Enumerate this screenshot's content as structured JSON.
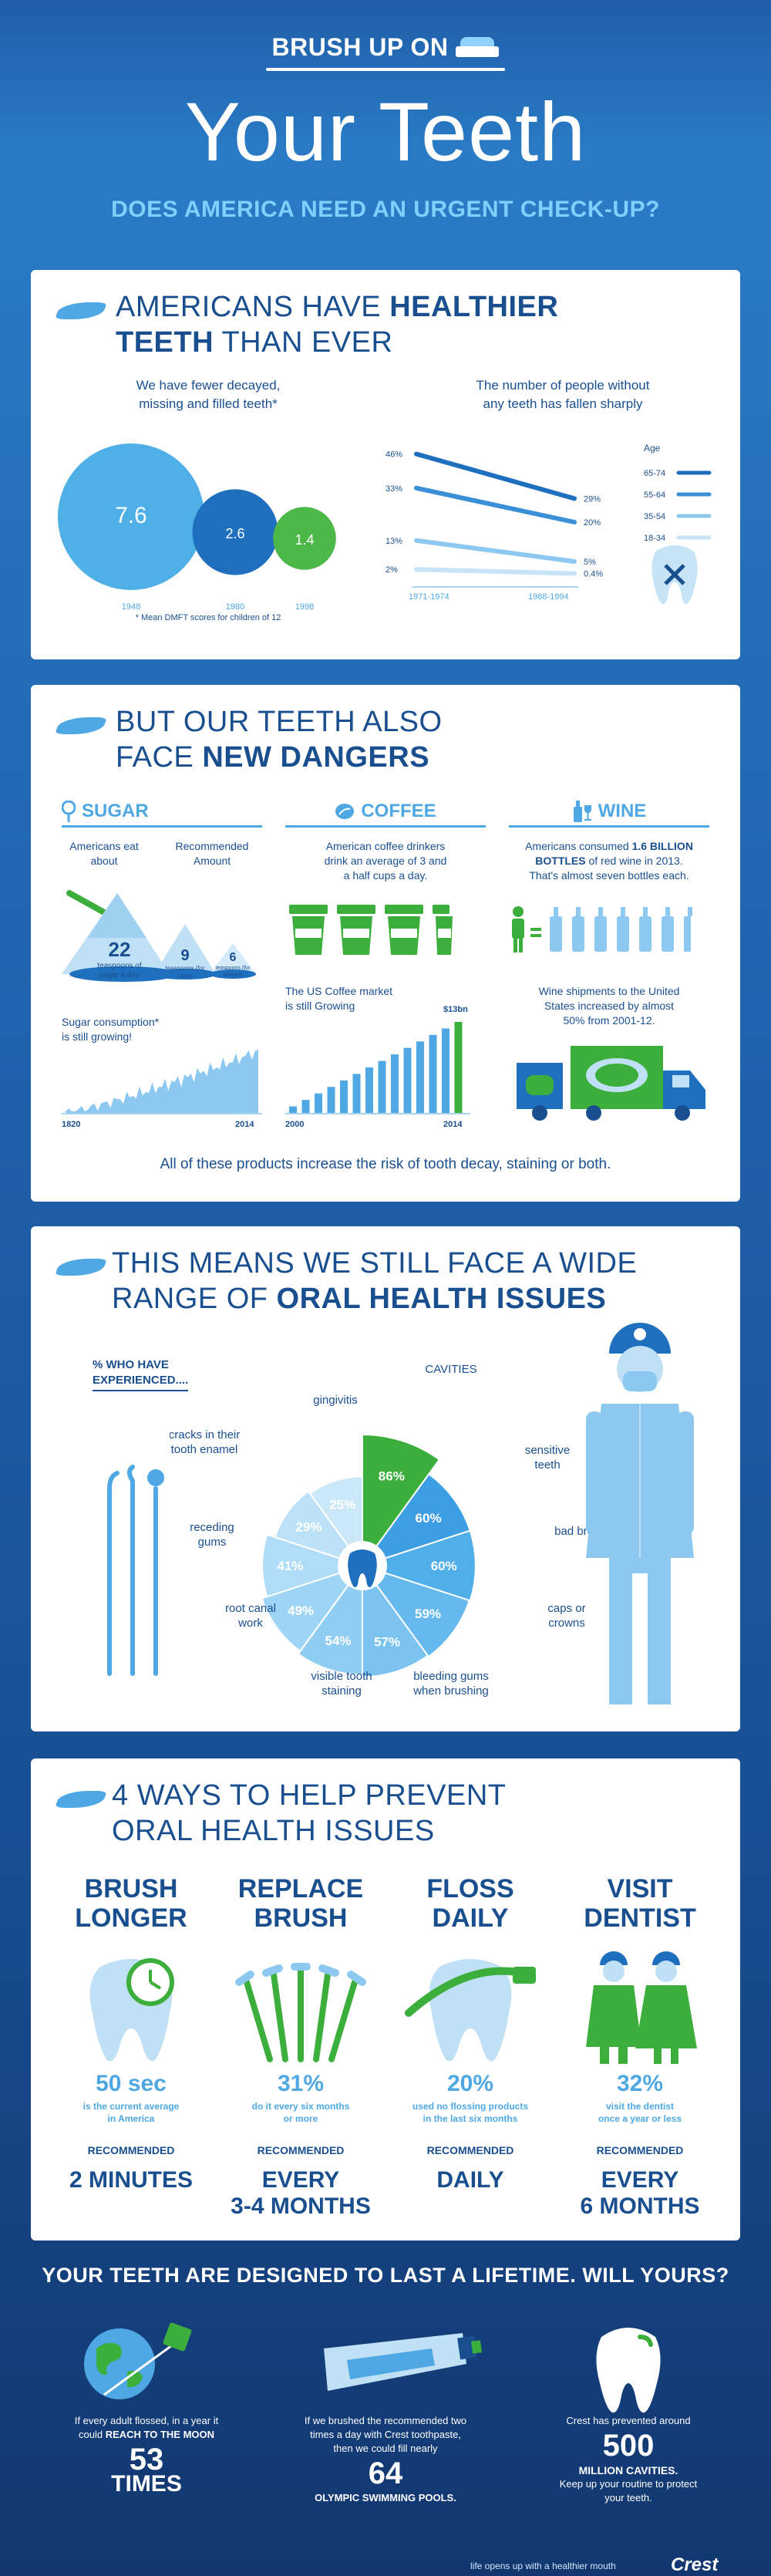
{
  "header": {
    "brush_up": "BRUSH UP ON",
    "title": "Your Teeth",
    "subtitle": "DOES AMERICA NEED AN URGENT CHECK-UP?"
  },
  "card1": {
    "title_pre": "AMERICANS HAVE",
    "title_bold": "HEALTHIER",
    "title_line2_bold": "TEETH",
    "title_line2": "THAN EVER",
    "left_heading_1": "We have fewer decayed,",
    "left_heading_2": "missing and filled teeth*",
    "right_heading_1": "The number of people without",
    "right_heading_2": "any teeth has fallen sharply",
    "footnote": "* Mean DMFT scores for children of 12",
    "legend_title": "Age"
  },
  "chart_data": [
    {
      "type": "bubble",
      "categories": [
        "1948",
        "1980",
        "1998"
      ],
      "values": [
        7.6,
        2.6,
        1.4
      ],
      "value_labels": [
        "7.6",
        "2.6",
        "1.4"
      ],
      "colors": [
        "#4fb0e8",
        "#1f6fbf",
        "#4cb848"
      ]
    },
    {
      "type": "line",
      "x": [
        "1971-1974",
        "1988-1994"
      ],
      "series": [
        {
          "name": "65-74",
          "values": [
            46,
            29
          ],
          "labels": [
            "46%",
            "29%"
          ],
          "color": "#1f6fbf"
        },
        {
          "name": "55-64",
          "values": [
            33,
            20
          ],
          "labels": [
            "33%",
            "20%"
          ],
          "color": "#3a8fd6"
        },
        {
          "name": "35-54",
          "values": [
            13,
            5
          ],
          "labels": [
            "13%",
            "5%"
          ],
          "color": "#8cc8ef"
        },
        {
          "name": "18-34",
          "values": [
            2,
            0.4
          ],
          "labels": [
            "2%",
            "0.4%"
          ],
          "color": "#c7e4f7"
        }
      ],
      "ylim": [
        0,
        50
      ]
    },
    {
      "type": "area",
      "title": "Sugar consumption* is still growing!",
      "x_labels": [
        "1820",
        "2014"
      ]
    },
    {
      "type": "bar",
      "title": "The US Coffee market is still Growing",
      "x_labels": [
        "2000",
        "2014"
      ],
      "values": [
        1,
        2,
        3,
        4,
        5,
        6,
        7,
        8,
        9,
        10,
        11,
        12,
        13,
        14
      ],
      "end_label": "$13bn"
    },
    {
      "type": "pie",
      "title": "CAVITIES",
      "heading_1": "% WHO HAVE",
      "heading_2": "EXPERIENCED....",
      "slices": [
        {
          "name": "CAVITIES",
          "value": 86,
          "label": "86%",
          "color": "#3cae3c"
        },
        {
          "name": "sensitive teeth",
          "value": 60,
          "label": "60%",
          "color": "#3d9ee3"
        },
        {
          "name": "bad breath",
          "value": 60,
          "label": "60%",
          "color": "#50aee9"
        },
        {
          "name": "caps or crowns",
          "value": 59,
          "label": "59%",
          "color": "#66b9ec"
        },
        {
          "name": "bleeding gums when brushing",
          "value": 57,
          "label": "57%",
          "color": "#7cc4ef"
        },
        {
          "name": "visible tooth staining",
          "value": 54,
          "label": "54%",
          "color": "#8fcdf2"
        },
        {
          "name": "root canal work",
          "value": 49,
          "label": "49%",
          "color": "#9fd5f4"
        },
        {
          "name": "receding gums",
          "value": 41,
          "label": "41%",
          "color": "#afdcf6"
        },
        {
          "name": "cracks in their tooth enamel",
          "value": 29,
          "label": "29%",
          "color": "#bde2f7"
        },
        {
          "name": "gingivitis",
          "value": 25,
          "label": "25%",
          "color": "#cbe8f9"
        }
      ]
    }
  ],
  "card2": {
    "title_line1": "BUT OUR TEETH ALSO",
    "title_line2_pre": "FACE",
    "title_line2_bold": "NEW DANGERS",
    "sugar": {
      "heading": "SUGAR",
      "americans_eat": "Americans eat about",
      "recommended": "Recommended Amount",
      "v22": "22",
      "v22_desc": "teaspoons of sugar a day",
      "v9": "9",
      "v9_desc": "teaspoons (for men)",
      "v6": "6",
      "v6_desc": "teaspoons (for women)",
      "growth_1": "Sugar consumption*",
      "growth_2": "is still growing!",
      "x_start": "1820",
      "x_end": "2014"
    },
    "coffee": {
      "heading": "COFFEE",
      "fact_1": "American coffee drinkers",
      "fact_2": "drink an average of 3 and",
      "fact_3": "a half cups a day.",
      "market_1": "The US Coffee market",
      "market_2": "is still Growing",
      "end_label": "$13bn",
      "x_start": "2000",
      "x_end": "2014"
    },
    "wine": {
      "heading": "WINE",
      "fact_pre": "Americans consumed",
      "fact_bold_1": "1.6 BILLION",
      "fact_bold_2": "BOTTLES",
      "fact_mid": "of red wine in 2013.",
      "fact_3": "That's almost seven bottles each.",
      "ship_1": "Wine shipments to the United",
      "ship_2": "States increased by almost",
      "ship_3": "50% from 2001-12."
    },
    "footer": "All of these products increase the risk of tooth decay, staining or both."
  },
  "card3": {
    "title_line1": "THIS MEANS WE STILL FACE A WIDE",
    "title_line2_pre": "RANGE OF",
    "title_line2_bold": "ORAL HEALTH ISSUES"
  },
  "card4": {
    "title_line1": "4 WAYS TO HELP PREVENT",
    "title_line2": "ORAL HEALTH ISSUES",
    "ways": [
      {
        "title_1": "BRUSH",
        "title_2": "LONGER",
        "stat": "50 sec",
        "desc_1": "is the current average",
        "desc_2": "in America",
        "rec": "RECOMMENDED",
        "val_1": "2 MINUTES",
        "val_2": ""
      },
      {
        "title_1": "REPLACE",
        "title_2": "BRUSH",
        "stat": "31%",
        "desc_1": "do it every six months",
        "desc_2": "or more",
        "rec": "RECOMMENDED",
        "val_1": "EVERY",
        "val_2": "3-4 MONTHS"
      },
      {
        "title_1": "FLOSS",
        "title_2": "DAILY",
        "stat": "20%",
        "desc_1": "used no flossing products",
        "desc_2": "in the last six months",
        "rec": "RECOMMENDED",
        "val_1": "DAILY",
        "val_2": ""
      },
      {
        "title_1": "VISIT",
        "title_2": "DENTIST",
        "stat": "32%",
        "desc_1": "visit the dentist",
        "desc_2": "once a year or less",
        "rec": "RECOMMENDED",
        "val_1": "EVERY",
        "val_2": "6 MONTHS"
      }
    ]
  },
  "footer": {
    "title": "YOUR TEETH ARE DESIGNED TO LAST A LIFETIME. WILL YOURS?",
    "col1_line1": "If every adult flossed, in a year it",
    "col1_line2_pre": "could",
    "col1_line2_bold": "REACH TO THE MOON",
    "col1_big": "53",
    "col1_mid": "TIMES",
    "col2_line1": "If we brushed the recommended two",
    "col2_line2": "times a day with Crest toothpaste,",
    "col2_line3": "then we could fill nearly",
    "col2_big": "64",
    "col2_mid": "OLYMPIC SWIMMING POOLS.",
    "col3_line1": "Crest has prevented around",
    "col3_big": "500",
    "col3_mid": "MILLION CAVITIES.",
    "col3_line2": "Keep up your routine to protect",
    "col3_line3": "your teeth.",
    "tagline": "life opens up with a healthier mouth",
    "brand": "Crest"
  },
  "colors": {
    "navy": "#1a4f8f",
    "sky": "#4fa8e3",
    "green": "#4cb848",
    "light": "#c7e4f7"
  }
}
